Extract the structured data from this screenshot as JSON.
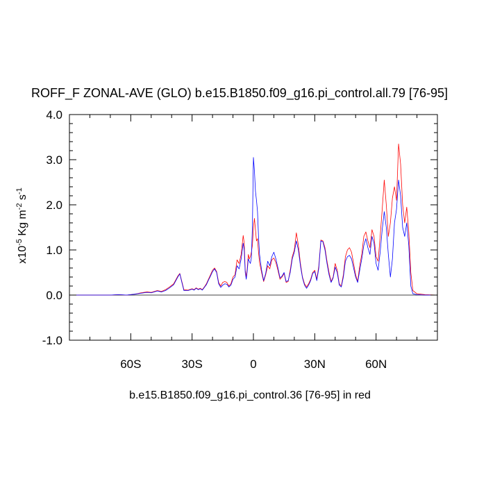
{
  "chart_data": {
    "type": "line",
    "title": "ROFF_F ZONAL-AVE (GLO) b.e15.B1850.f09_g16.pi_control.all.79 [76-95]",
    "xlabel": "b.e15.B1850.f09_g16.pi_control.36 [76-95] in red",
    "ylabel": {
      "prefix": "x10",
      "exp1": "-5",
      "mid": " Kg m",
      "exp2": "-2",
      "mid2": " s",
      "exp3": "-1"
    },
    "xlim": [
      -90,
      90
    ],
    "ylim": [
      -1.0,
      4.0
    ],
    "xticks": [
      {
        "value": -60,
        "label": "60S"
      },
      {
        "value": -30,
        "label": "30S"
      },
      {
        "value": 0,
        "label": "0"
      },
      {
        "value": 30,
        "label": "30N"
      },
      {
        "value": 60,
        "label": "60N"
      }
    ],
    "yticks": [
      {
        "value": -1.0,
        "label": "-1.0"
      },
      {
        "value": 0.0,
        "label": "0.0"
      },
      {
        "value": 1.0,
        "label": "1.0"
      },
      {
        "value": 2.0,
        "label": "2.0"
      },
      {
        "value": 3.0,
        "label": "3.0"
      },
      {
        "value": 4.0,
        "label": "4.0"
      }
    ],
    "reference_line": 0.0,
    "series": [
      {
        "color": "#ff0000",
        "points": [
          [
            -90,
            0
          ],
          [
            -70,
            0
          ],
          [
            -66,
            0.01
          ],
          [
            -62,
            0.0
          ],
          [
            -58,
            0.02
          ],
          [
            -55,
            0.05
          ],
          [
            -52,
            0.07
          ],
          [
            -50,
            0.06
          ],
          [
            -47,
            0.1
          ],
          [
            -45,
            0.08
          ],
          [
            -43,
            0.12
          ],
          [
            -41,
            0.18
          ],
          [
            -39,
            0.25
          ],
          [
            -37,
            0.42
          ],
          [
            -36,
            0.48
          ],
          [
            -35,
            0.3
          ],
          [
            -34,
            0.12
          ],
          [
            -32,
            0.11
          ],
          [
            -30,
            0.14
          ],
          [
            -29,
            0.12
          ],
          [
            -28,
            0.16
          ],
          [
            -27,
            0.13
          ],
          [
            -26,
            0.15
          ],
          [
            -25,
            0.12
          ],
          [
            -24,
            0.18
          ],
          [
            -23,
            0.25
          ],
          [
            -22,
            0.35
          ],
          [
            -21,
            0.45
          ],
          [
            -20,
            0.55
          ],
          [
            -19,
            0.6
          ],
          [
            -18,
            0.52
          ],
          [
            -17,
            0.28
          ],
          [
            -16,
            0.2
          ],
          [
            -15,
            0.28
          ],
          [
            -14,
            0.3
          ],
          [
            -13,
            0.28
          ],
          [
            -12,
            0.2
          ],
          [
            -11,
            0.25
          ],
          [
            -10,
            0.4
          ],
          [
            -9,
            0.45
          ],
          [
            -8,
            0.78
          ],
          [
            -7,
            0.7
          ],
          [
            -6,
            0.9
          ],
          [
            -5,
            1.32
          ],
          [
            -4.5,
            1.15
          ],
          [
            -4,
            0.55
          ],
          [
            -3.5,
            0.4
          ],
          [
            -3,
            0.6
          ],
          [
            -2.5,
            0.9
          ],
          [
            -2,
            0.8
          ],
          [
            -1.5,
            0.85
          ],
          [
            -1,
            0.95
          ],
          [
            -0.5,
            1.1
          ],
          [
            0,
            1.5
          ],
          [
            0.5,
            1.7
          ],
          [
            1,
            1.45
          ],
          [
            1.5,
            1.2
          ],
          [
            2,
            1.25
          ],
          [
            2.5,
            0.95
          ],
          [
            3,
            0.72
          ],
          [
            4,
            0.5
          ],
          [
            5,
            0.3
          ],
          [
            6,
            0.45
          ],
          [
            7,
            0.65
          ],
          [
            8,
            0.58
          ],
          [
            9,
            0.78
          ],
          [
            10,
            0.82
          ],
          [
            11,
            0.72
          ],
          [
            12,
            0.55
          ],
          [
            13,
            0.35
          ],
          [
            14,
            0.4
          ],
          [
            15,
            0.48
          ],
          [
            16,
            0.28
          ],
          [
            17,
            0.3
          ],
          [
            18,
            0.55
          ],
          [
            19,
            0.85
          ],
          [
            20,
            1.0
          ],
          [
            21,
            1.38
          ],
          [
            22,
            1.1
          ],
          [
            23,
            0.7
          ],
          [
            24,
            0.4
          ],
          [
            25,
            0.25
          ],
          [
            26,
            0.18
          ],
          [
            27,
            0.25
          ],
          [
            28,
            0.35
          ],
          [
            29,
            0.5
          ],
          [
            30,
            0.55
          ],
          [
            31,
            0.35
          ],
          [
            32,
            0.65
          ],
          [
            33,
            1.22
          ],
          [
            34,
            1.2
          ],
          [
            35,
            1.05
          ],
          [
            36,
            0.75
          ],
          [
            37,
            0.5
          ],
          [
            38,
            0.3
          ],
          [
            39,
            0.4
          ],
          [
            40,
            0.7
          ],
          [
            41,
            0.55
          ],
          [
            42,
            0.25
          ],
          [
            43,
            0.2
          ],
          [
            44,
            0.45
          ],
          [
            45,
            0.85
          ],
          [
            46,
            1.0
          ],
          [
            47,
            1.05
          ],
          [
            48,
            0.95
          ],
          [
            49,
            0.7
          ],
          [
            50,
            0.45
          ],
          [
            51,
            0.3
          ],
          [
            52,
            0.65
          ],
          [
            53,
            0.9
          ],
          [
            54,
            1.3
          ],
          [
            55,
            1.4
          ],
          [
            56,
            1.2
          ],
          [
            57,
            1.05
          ],
          [
            58,
            1.45
          ],
          [
            59,
            1.3
          ],
          [
            60,
            0.85
          ],
          [
            61,
            0.75
          ],
          [
            62,
            1.3
          ],
          [
            63,
            1.9
          ],
          [
            64,
            2.55
          ],
          [
            65,
            2.0
          ],
          [
            66,
            1.3
          ],
          [
            67,
            1.6
          ],
          [
            68,
            2.15
          ],
          [
            69,
            2.4
          ],
          [
            70,
            2.1
          ],
          [
            71,
            3.35
          ],
          [
            72,
            2.9
          ],
          [
            73,
            2.0
          ],
          [
            74,
            1.6
          ],
          [
            75,
            1.95
          ],
          [
            76,
            1.4
          ],
          [
            77,
            0.5
          ],
          [
            78,
            0.1
          ],
          [
            80,
            0.03
          ],
          [
            84,
            0.01
          ],
          [
            90,
            0
          ]
        ]
      },
      {
        "color": "#0000ff",
        "points": [
          [
            -90,
            0
          ],
          [
            -70,
            0
          ],
          [
            -66,
            0.01
          ],
          [
            -62,
            0.0
          ],
          [
            -58,
            0.02
          ],
          [
            -55,
            0.04
          ],
          [
            -52,
            0.06
          ],
          [
            -50,
            0.05
          ],
          [
            -47,
            0.09
          ],
          [
            -45,
            0.07
          ],
          [
            -43,
            0.1
          ],
          [
            -41,
            0.16
          ],
          [
            -39,
            0.23
          ],
          [
            -37,
            0.4
          ],
          [
            -36,
            0.47
          ],
          [
            -35,
            0.28
          ],
          [
            -34,
            0.1
          ],
          [
            -32,
            0.1
          ],
          [
            -30,
            0.13
          ],
          [
            -29,
            0.11
          ],
          [
            -28,
            0.15
          ],
          [
            -27,
            0.12
          ],
          [
            -26,
            0.14
          ],
          [
            -25,
            0.11
          ],
          [
            -24,
            0.17
          ],
          [
            -23,
            0.23
          ],
          [
            -22,
            0.33
          ],
          [
            -21,
            0.42
          ],
          [
            -20,
            0.52
          ],
          [
            -19,
            0.58
          ],
          [
            -18,
            0.5
          ],
          [
            -17,
            0.25
          ],
          [
            -16,
            0.17
          ],
          [
            -15,
            0.22
          ],
          [
            -14,
            0.25
          ],
          [
            -13,
            0.24
          ],
          [
            -12,
            0.18
          ],
          [
            -11,
            0.22
          ],
          [
            -10,
            0.35
          ],
          [
            -9,
            0.4
          ],
          [
            -8,
            0.65
          ],
          [
            -7,
            0.58
          ],
          [
            -6,
            0.8
          ],
          [
            -5,
            1.15
          ],
          [
            -4.5,
            1.0
          ],
          [
            -4,
            0.5
          ],
          [
            -3.5,
            0.35
          ],
          [
            -3,
            0.55
          ],
          [
            -2.5,
            0.8
          ],
          [
            -2,
            0.75
          ],
          [
            -1.5,
            0.7
          ],
          [
            -1,
            0.82
          ],
          [
            -0.5,
            1.5
          ],
          [
            0,
            3.05
          ],
          [
            0.5,
            2.75
          ],
          [
            1,
            2.3
          ],
          [
            1.5,
            2.1
          ],
          [
            2,
            1.85
          ],
          [
            2.5,
            1.3
          ],
          [
            3,
            0.9
          ],
          [
            4,
            0.55
          ],
          [
            5,
            0.32
          ],
          [
            6,
            0.48
          ],
          [
            7,
            0.75
          ],
          [
            8,
            0.65
          ],
          [
            9,
            0.85
          ],
          [
            10,
            0.95
          ],
          [
            11,
            0.8
          ],
          [
            12,
            0.6
          ],
          [
            13,
            0.38
          ],
          [
            14,
            0.42
          ],
          [
            15,
            0.5
          ],
          [
            16,
            0.3
          ],
          [
            17,
            0.32
          ],
          [
            18,
            0.5
          ],
          [
            19,
            0.8
          ],
          [
            20,
            0.95
          ],
          [
            21,
            1.2
          ],
          [
            22,
            1.0
          ],
          [
            23,
            0.65
          ],
          [
            24,
            0.38
          ],
          [
            25,
            0.22
          ],
          [
            26,
            0.15
          ],
          [
            27,
            0.22
          ],
          [
            28,
            0.32
          ],
          [
            29,
            0.48
          ],
          [
            30,
            0.52
          ],
          [
            31,
            0.32
          ],
          [
            32,
            0.6
          ],
          [
            33,
            1.2
          ],
          [
            34,
            1.18
          ],
          [
            35,
            1.0
          ],
          [
            36,
            0.7
          ],
          [
            37,
            0.45
          ],
          [
            38,
            0.28
          ],
          [
            39,
            0.38
          ],
          [
            40,
            0.62
          ],
          [
            41,
            0.5
          ],
          [
            42,
            0.22
          ],
          [
            43,
            0.18
          ],
          [
            44,
            0.4
          ],
          [
            45,
            0.75
          ],
          [
            46,
            0.85
          ],
          [
            47,
            0.88
          ],
          [
            48,
            0.8
          ],
          [
            49,
            0.6
          ],
          [
            50,
            0.4
          ],
          [
            51,
            0.28
          ],
          [
            52,
            0.55
          ],
          [
            53,
            0.8
          ],
          [
            54,
            1.1
          ],
          [
            55,
            1.25
          ],
          [
            56,
            1.05
          ],
          [
            57,
            0.9
          ],
          [
            58,
            1.3
          ],
          [
            59,
            1.15
          ],
          [
            60,
            0.7
          ],
          [
            61,
            0.55
          ],
          [
            62,
            0.95
          ],
          [
            63,
            1.45
          ],
          [
            64,
            1.85
          ],
          [
            65,
            1.5
          ],
          [
            66,
            0.9
          ],
          [
            67,
            0.4
          ],
          [
            68,
            0.8
          ],
          [
            69,
            1.6
          ],
          [
            70,
            1.9
          ],
          [
            71,
            2.55
          ],
          [
            72,
            2.2
          ],
          [
            73,
            1.5
          ],
          [
            74,
            1.3
          ],
          [
            75,
            1.6
          ],
          [
            76,
            1.1
          ],
          [
            77,
            0.2
          ],
          [
            78,
            0.03
          ],
          [
            80,
            0.01
          ],
          [
            84,
            0.0
          ],
          [
            90,
            0
          ]
        ]
      }
    ],
    "grid": false,
    "legend": "none"
  }
}
